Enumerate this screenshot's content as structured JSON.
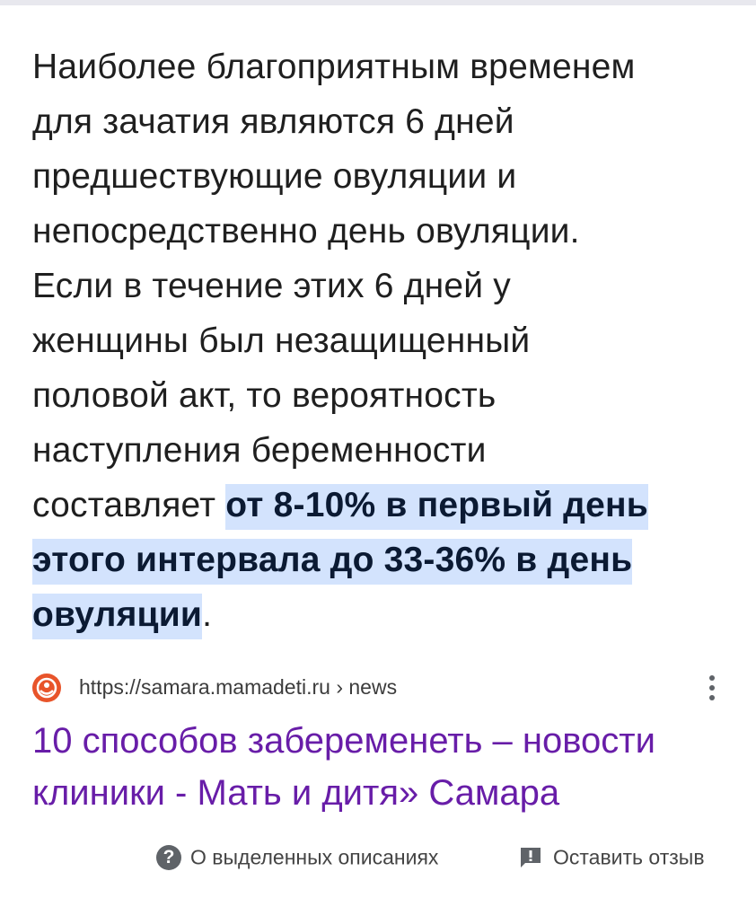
{
  "snippet": {
    "lines": [
      {
        "text": "Наиболее благоприятным временем",
        "hl": ""
      },
      {
        "text": "для зачатия являются 6 дней",
        "hl": ""
      },
      {
        "text": "предшествующие овуляции и",
        "hl": ""
      },
      {
        "text": "непосредственно день овуляции.",
        "hl": ""
      },
      {
        "text": "Если в течение этих 6 дней у",
        "hl": ""
      },
      {
        "text": "женщины был незащищенный",
        "hl": ""
      },
      {
        "text": "половой акт, то вероятность",
        "hl": ""
      },
      {
        "text": "наступления беременности",
        "hl": ""
      },
      {
        "text": "составляет ",
        "hl": "от 8-10% в первый день"
      },
      {
        "text": "",
        "hl": "этого интервала до 33-36% в день"
      },
      {
        "text": "",
        "hl": "овуляции",
        "after": "."
      }
    ],
    "highlight_color": "#d3e3fd"
  },
  "result": {
    "url": "https://samara.mamadeti.ru › news",
    "title_line1": "10 способов забеременеть – новости",
    "title_line2": "клиники - Мать и дитя» Самара",
    "title_color": "#681da8",
    "favicon": "mamadeti-logo-icon"
  },
  "footer": {
    "about_label": "О выделенных описаниях",
    "feedback_label": "Оставить отзыв"
  }
}
